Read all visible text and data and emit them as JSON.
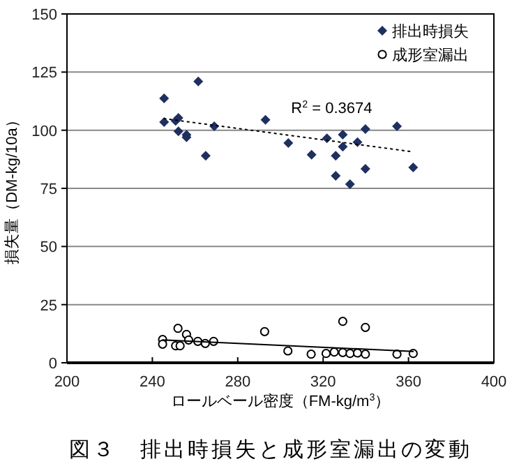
{
  "chart_data": {
    "type": "scatter",
    "title": "図３　排出時損失と成形室漏出の変動",
    "xlabel": "ロールベール密度（FM-kg/m$^{3}$）",
    "ylabel": "損失量（DM-kg/10a）",
    "xlim": [
      200,
      400
    ],
    "xticks": [
      200,
      240,
      280,
      320,
      360,
      400
    ],
    "ylim": [
      0,
      150
    ],
    "yticks": [
      0,
      25,
      50,
      75,
      100,
      125,
      150
    ],
    "grid": "y",
    "legend": "top right",
    "annotations": [
      "R$^{2}$ = 0.3674"
    ],
    "series": [
      {
        "name": "排出時損失",
        "color": "#1f2f5f",
        "marker": "diamond",
        "x": [
          245.5,
          245.5,
          250.9,
          252.2,
          252.2,
          256,
          256,
          261.5,
          265,
          269,
          293,
          303.7,
          314.6,
          321.8,
          325.9,
          325.9,
          329.2,
          329.2,
          332.6,
          336.1,
          339.8,
          339.8,
          354.6,
          362.2
        ],
        "values": [
          113.7,
          103.5,
          104,
          105.3,
          99.5,
          98,
          97,
          121,
          89,
          101.7,
          104.5,
          94.5,
          89.5,
          96.5,
          89,
          80.4,
          98.1,
          92.9,
          76.8,
          94.9,
          100.5,
          83.4,
          101.7,
          84
        ]
      },
      {
        "name": "成形室漏出",
        "color": "#000000",
        "marker": "circle",
        "x": [
          244.8,
          244.8,
          250.9,
          253,
          252,
          256,
          257,
          261.3,
          264.8,
          268.7,
          292.6,
          303.5,
          314.4,
          321.4,
          325.2,
          329.2,
          329.2,
          332.6,
          336.1,
          339.8,
          339.8,
          354.6,
          362.2
        ],
        "values": [
          10,
          8,
          7.3,
          7.3,
          14.8,
          12.2,
          9.8,
          9.2,
          8.3,
          9.2,
          13.4,
          5.1,
          3.7,
          4,
          4.6,
          17.8,
          4.4,
          4,
          4.2,
          15.2,
          3.7,
          3.7,
          4
        ]
      },
      {
        "type": "line",
        "color": "#000000",
        "line_style": "dotted",
        "x": [
          245.5,
          362.2
        ],
        "values": [
          105,
          90.7
        ]
      },
      {
        "type": "line",
        "color": "#000000",
        "line_style": "solid",
        "x": [
          244.8,
          362.2
        ],
        "values": [
          9.8,
          4.9
        ]
      }
    ]
  }
}
